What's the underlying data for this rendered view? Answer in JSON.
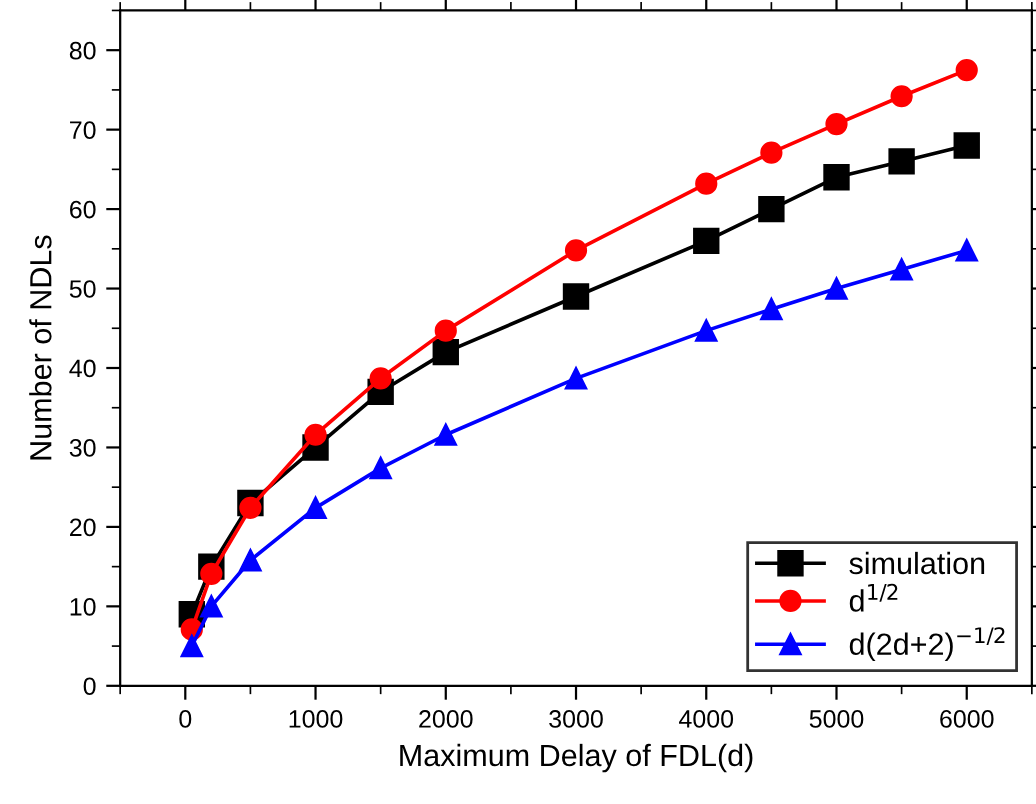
{
  "chart_data": {
    "type": "line",
    "xlabel": "Maximum Delay of FDL(d)",
    "ylabel": "Number of NDLs",
    "x": [
      50,
      200,
      500,
      1000,
      1500,
      2000,
      3000,
      4000,
      4500,
      5000,
      5500,
      6000
    ],
    "series": [
      {
        "name": "simulation",
        "color": "#000000",
        "marker": "square",
        "values": [
          9,
          15,
          23,
          30,
          37,
          42,
          49,
          56,
          60,
          64,
          66,
          68
        ]
      },
      {
        "name": "d$^{1/2}$",
        "color": "#ff0000",
        "marker": "circle",
        "values": [
          7.1,
          14.1,
          22.4,
          31.6,
          38.7,
          44.7,
          54.8,
          63.2,
          67.1,
          70.7,
          74.2,
          77.5
        ]
      },
      {
        "name": "d(2d+2)$^{−1/2}$",
        "color": "#0000ff",
        "marker": "triangle",
        "values": [
          5,
          10,
          15.8,
          22.4,
          27.4,
          31.6,
          38.7,
          44.7,
          47.4,
          50,
          52.4,
          54.8
        ]
      }
    ],
    "xlim": [
      -500,
      6500
    ],
    "ylim": [
      0,
      85
    ],
    "xticks": [
      0,
      1000,
      2000,
      3000,
      4000,
      5000,
      6000
    ],
    "yticks": [
      0,
      10,
      20,
      30,
      40,
      50,
      60,
      70,
      80
    ],
    "grid": false,
    "legend": "bottom right",
    "line_style": "solid"
  }
}
